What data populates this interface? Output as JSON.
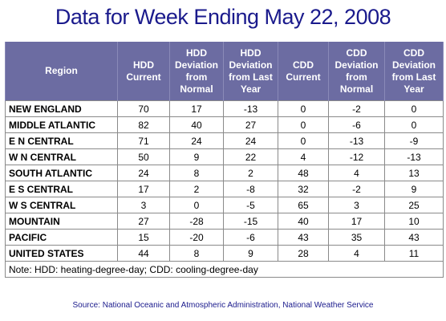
{
  "title": "Data for Week Ending May 22, 2008",
  "table": {
    "headers": {
      "region": "Region",
      "hdd_current": [
        "HDD",
        "Current"
      ],
      "hdd_dev_normal": [
        "HDD",
        "Deviation",
        "from",
        "Normal"
      ],
      "hdd_dev_last": [
        "HDD",
        "Deviation",
        "from Last",
        "Year"
      ],
      "cdd_current": [
        "CDD",
        "Current"
      ],
      "cdd_dev_normal": [
        "CDD",
        "Deviation",
        "from",
        "Normal"
      ],
      "cdd_dev_last": [
        "CDD",
        "Deviation",
        "from Last",
        "Year"
      ]
    },
    "rows": [
      {
        "region": "NEW ENGLAND",
        "values": [
          "70",
          "17",
          "-13",
          "0",
          "-2",
          "0"
        ]
      },
      {
        "region": "MIDDLE ATLANTIC",
        "values": [
          "82",
          "40",
          "27",
          "0",
          "-6",
          "0"
        ]
      },
      {
        "region": "E N CENTRAL",
        "values": [
          "71",
          "24",
          "24",
          "0",
          "-13",
          "-9"
        ]
      },
      {
        "region": "W N CENTRAL",
        "values": [
          "50",
          "9",
          "22",
          "4",
          "-12",
          "-13"
        ]
      },
      {
        "region": "SOUTH ATLANTIC",
        "values": [
          "24",
          "8",
          "2",
          "48",
          "4",
          "13"
        ]
      },
      {
        "region": "E S CENTRAL",
        "values": [
          "17",
          "2",
          "-8",
          "32",
          "-2",
          "9"
        ]
      },
      {
        "region": "W S CENTRAL",
        "values": [
          "3",
          "0",
          "-5",
          "65",
          "3",
          "25"
        ]
      },
      {
        "region": "MOUNTAIN",
        "values": [
          "27",
          "-28",
          "-15",
          "40",
          "17",
          "10"
        ]
      },
      {
        "region": "PACIFIC",
        "values": [
          "15",
          "-20",
          "-6",
          "43",
          "35",
          "43"
        ]
      },
      {
        "region": "UNITED STATES",
        "values": [
          "44",
          "8",
          "9",
          "28",
          "4",
          "11"
        ]
      }
    ],
    "note": "Note: HDD: heating-degree-day; CDD: cooling-degree-day"
  },
  "source": "Source:  National Oceanic and Atmospheric Administration, National Weather Service",
  "colors": {
    "title": "#1a1a8c",
    "header_bg": "#6c6ca2",
    "header_text": "#ffffff"
  }
}
